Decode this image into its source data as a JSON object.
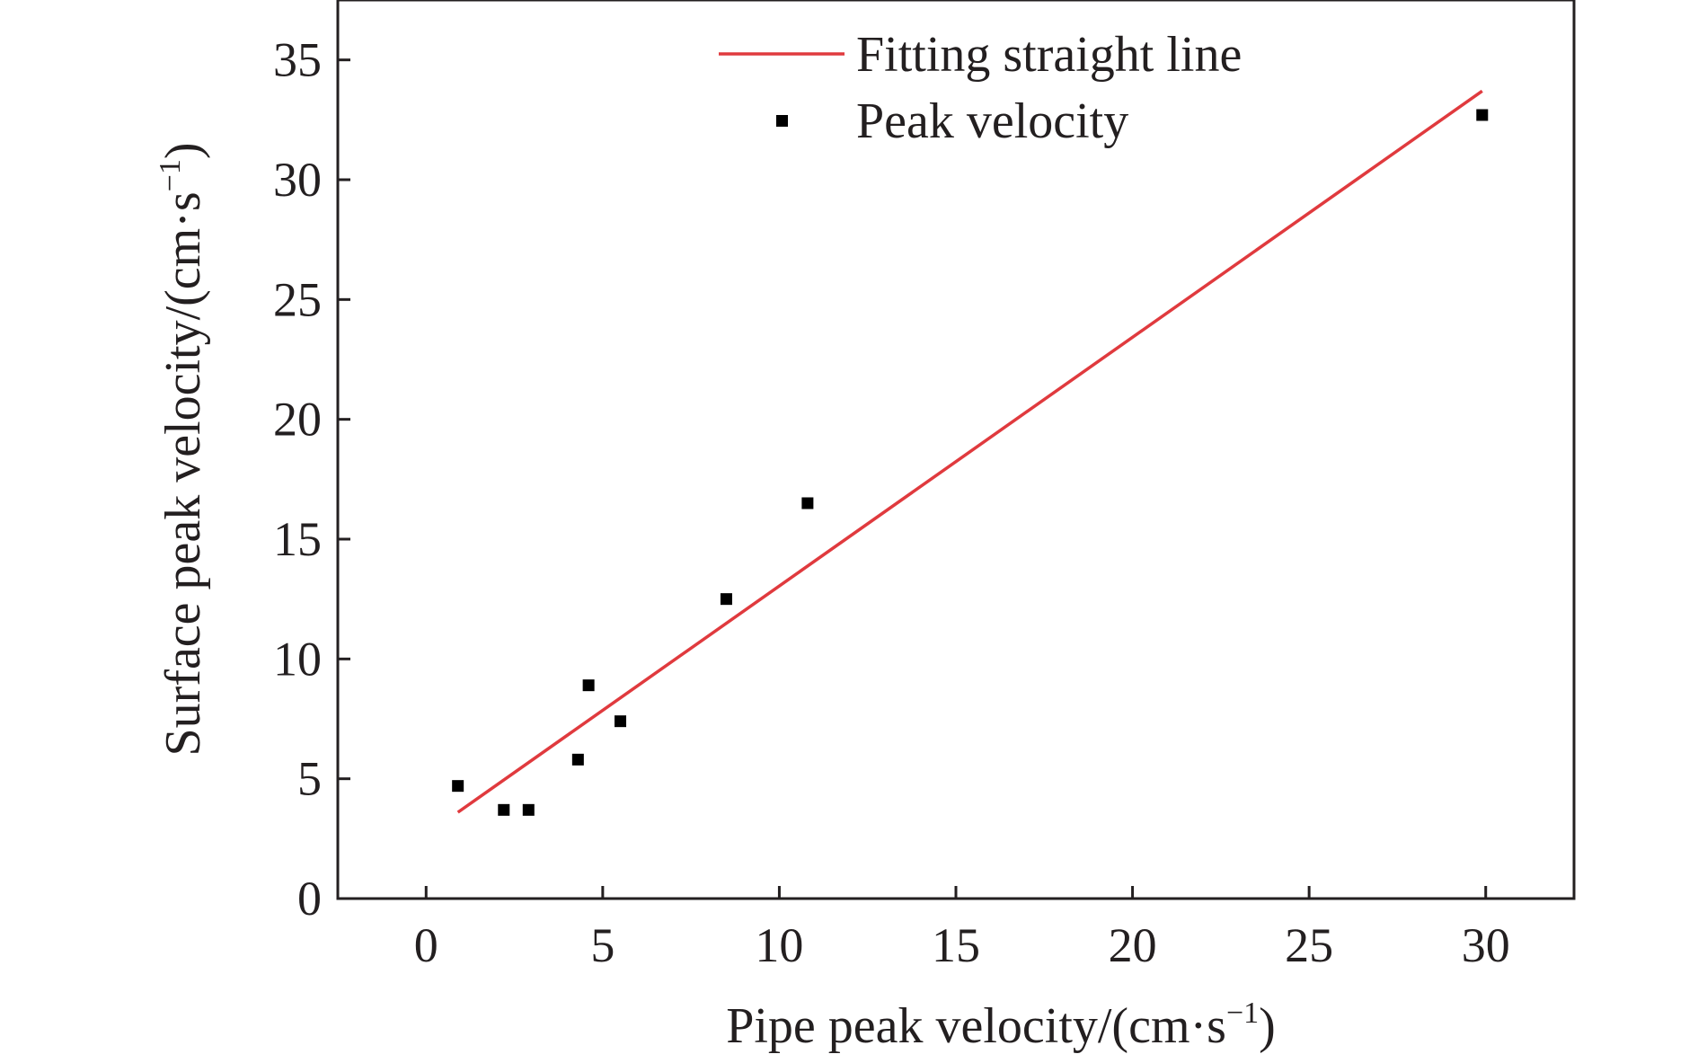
{
  "chart_data": {
    "type": "scatter",
    "title": "",
    "xlabel": "Pipe peak velocity/(cm·s",
    "ylabel": "Surface peak velocity/(cm·s",
    "unit_superscript": "−1",
    "unit_close": ")",
    "xlim": [
      -2.5,
      32.5
    ],
    "ylim": [
      0,
      37.5
    ],
    "xticks": [
      0,
      5,
      10,
      15,
      20,
      25,
      30
    ],
    "yticks": [
      0,
      5,
      10,
      15,
      20,
      25,
      30,
      35
    ],
    "grid": false,
    "legend_position": "top-center",
    "series": [
      {
        "name": "Peak velocity",
        "kind": "scatter",
        "marker": "square",
        "color": "#000000",
        "x": [
          0.9,
          2.2,
          2.9,
          4.3,
          4.6,
          5.5,
          8.5,
          10.8,
          29.9
        ],
        "y": [
          4.7,
          3.7,
          3.7,
          5.8,
          8.9,
          7.4,
          12.5,
          16.5,
          32.7
        ]
      },
      {
        "name": "Fitting straight line",
        "kind": "line",
        "color": "#e03a3e",
        "x": [
          0.9,
          29.9
        ],
        "y": [
          3.6,
          33.7
        ]
      }
    ]
  }
}
